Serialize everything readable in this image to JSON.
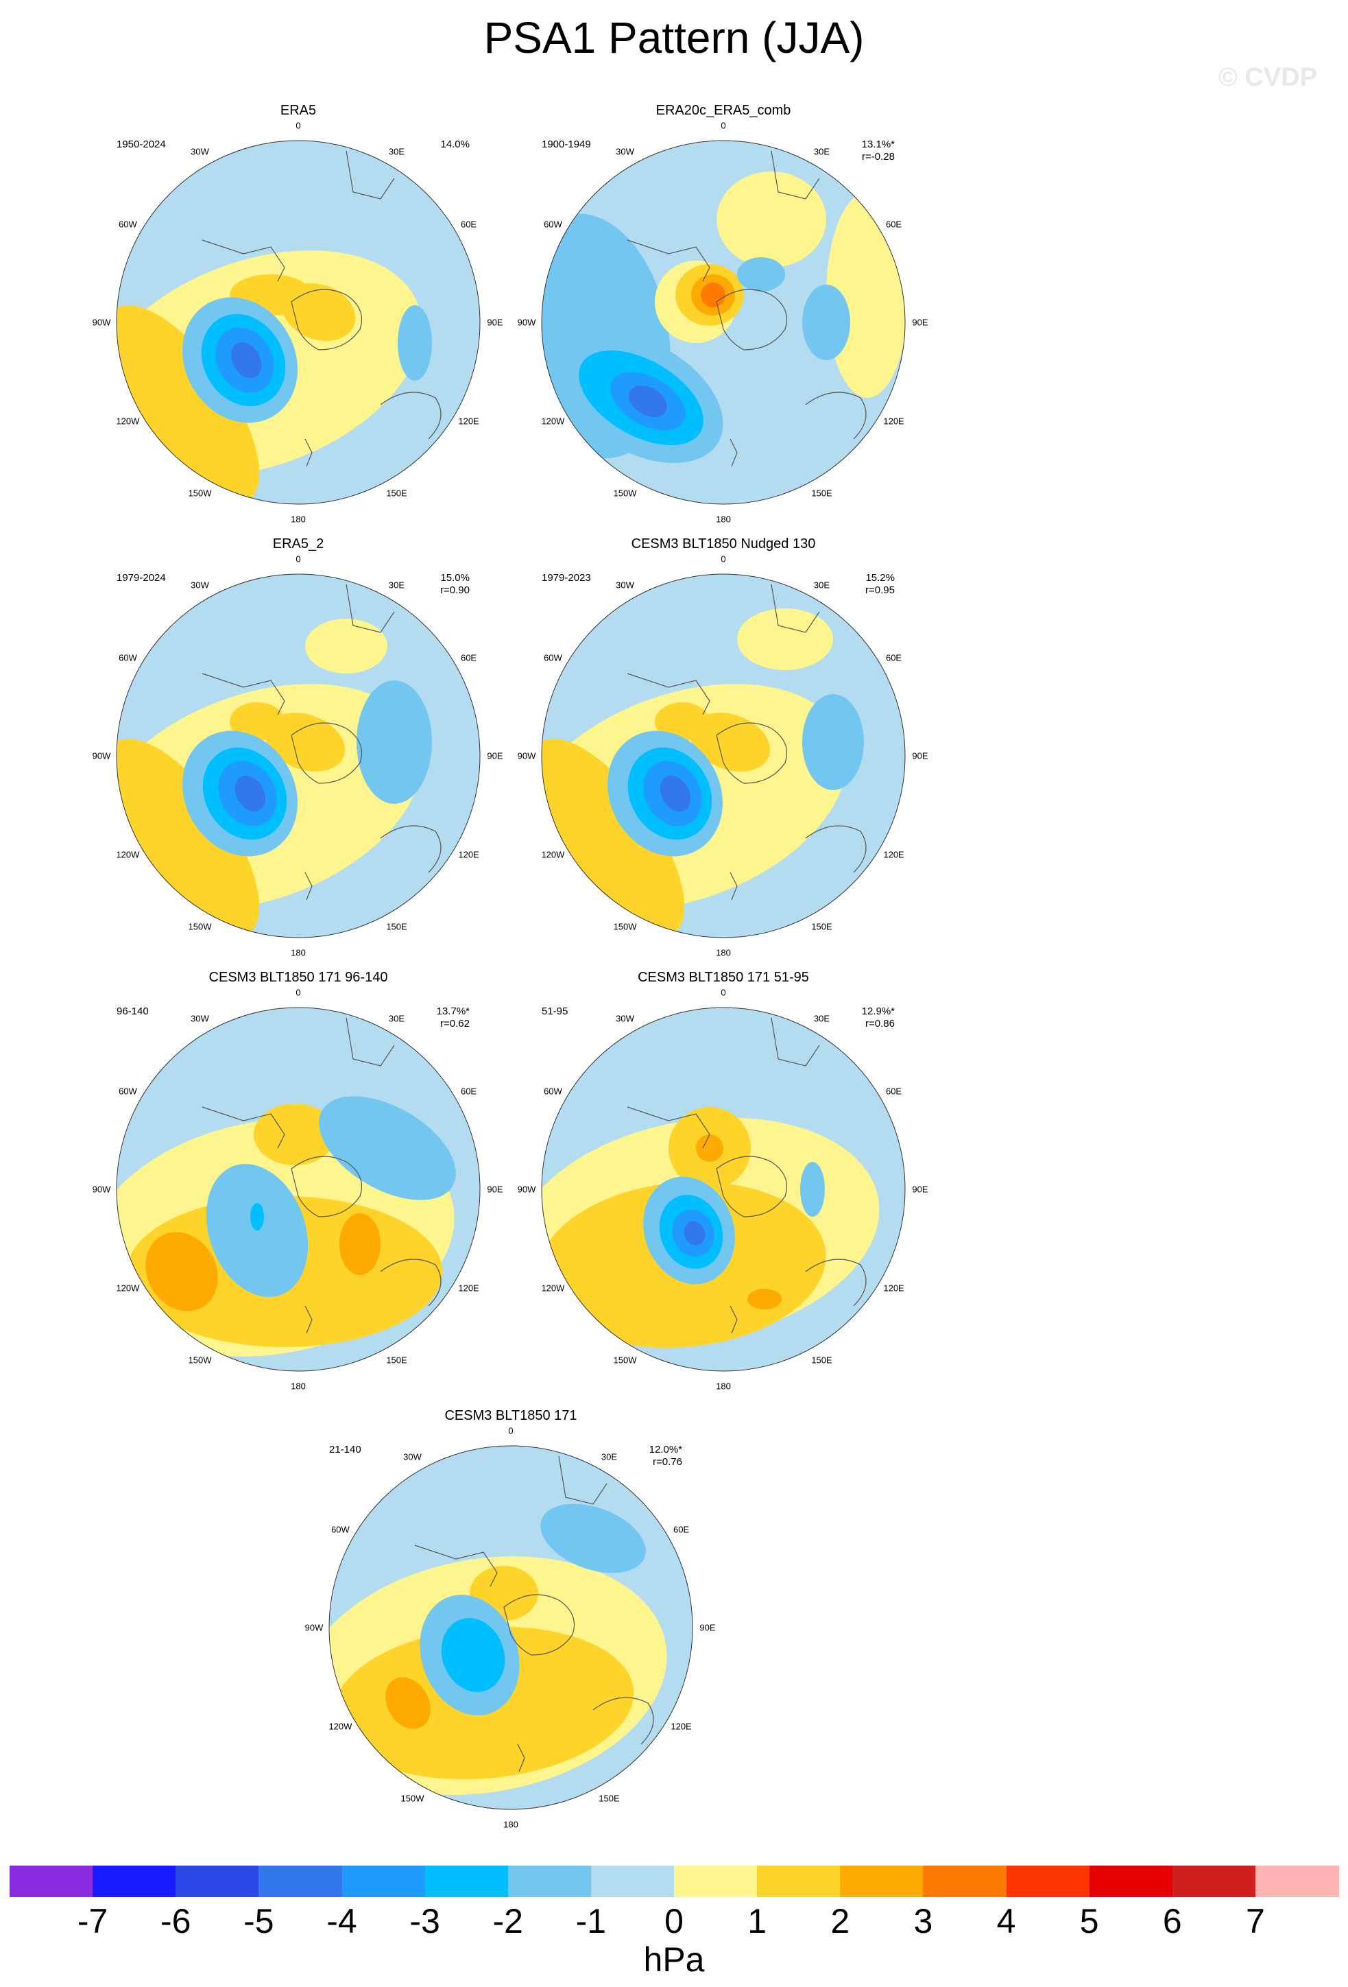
{
  "title": "PSA1 Pattern (JJA)",
  "watermark": "© CVDP",
  "lon_labels": [
    "0",
    "30E",
    "60E",
    "90E",
    "120E",
    "150E",
    "180",
    "150W",
    "120W",
    "90W",
    "60W",
    "30W"
  ],
  "panels": [
    {
      "title": "ERA5",
      "period": "1950-2024",
      "stat1": "14.0%",
      "stat2": "",
      "pattern": "era5"
    },
    {
      "title": "ERA20c_ERA5_comb",
      "period": "1900-1949",
      "stat1": "13.1%*",
      "stat2": "r=-0.28",
      "pattern": "era20c"
    },
    {
      "title": "ERA5_2",
      "period": "1979-2024",
      "stat1": "15.0%",
      "stat2": "r=0.90",
      "pattern": "era5b"
    },
    {
      "title": "CESM3 BLT1850 Nudged 130",
      "period": "1979-2023",
      "stat1": "15.2%",
      "stat2": "r=0.95",
      "pattern": "nudged"
    },
    {
      "title": "CESM3 BLT1850 171 96-140",
      "period": "96-140",
      "stat1": "13.7%*",
      "stat2": "r=0.62",
      "pattern": "c96"
    },
    {
      "title": "CESM3 BLT1850 171 51-95",
      "period": "51-95",
      "stat1": "12.9%*",
      "stat2": "r=0.86",
      "pattern": "c51"
    },
    {
      "title": "CESM3 BLT1850 171",
      "period": "21-140",
      "stat1": "12.0%*",
      "stat2": "r=0.76",
      "pattern": "c21"
    }
  ],
  "colorbar": {
    "ticks": [
      "-7",
      "-6",
      "-5",
      "-4",
      "-3",
      "-2",
      "-1",
      "0",
      "1",
      "2",
      "3",
      "4",
      "5",
      "6",
      "7"
    ],
    "colors": [
      "#8a2be2",
      "#1a1aff",
      "#2a48e6",
      "#3377ee",
      "#1f9bff",
      "#00bfff",
      "#73c6f0",
      "#b3dcf0",
      "#fff58e",
      "#ffd42a",
      "#ffaa00",
      "#ff7a00",
      "#ff3300",
      "#e60000",
      "#d01f1f",
      "#ffb3b3"
    ],
    "units": "hPa"
  }
}
